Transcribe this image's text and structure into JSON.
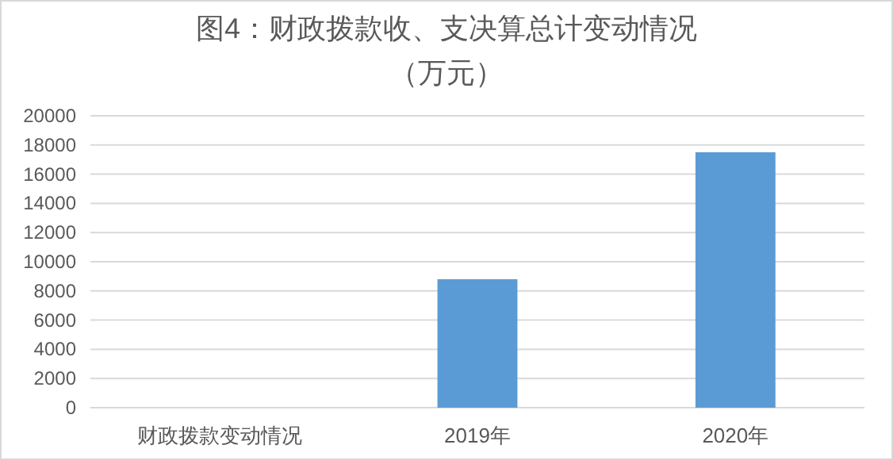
{
  "chart_data": {
    "type": "bar",
    "title": "图4：财政拨款收、支决算总计变动情况",
    "subtitle": "（万元）",
    "categories": [
      "财政拨款变动情况",
      "2019年",
      "2020年"
    ],
    "values": [
      null,
      8800,
      17500
    ],
    "color": "#5b9bd5",
    "ylim": [
      0,
      20000
    ],
    "yticks": [
      0,
      2000,
      4000,
      6000,
      8000,
      10000,
      12000,
      14000,
      16000,
      18000,
      20000
    ],
    "grid": "y"
  }
}
